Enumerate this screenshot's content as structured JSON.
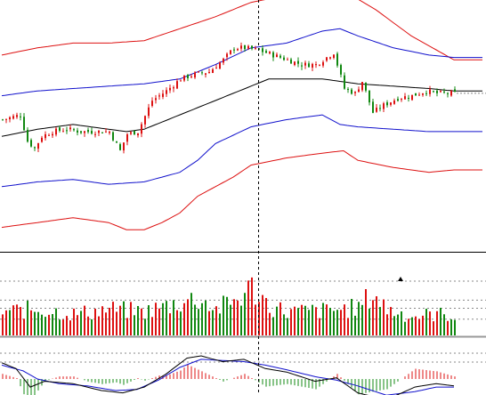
{
  "colors": {
    "background": "#ffffff",
    "bollinger_outer": "#dd1111",
    "bollinger_inner": "#1111cc",
    "moving_average": "#000000",
    "candle_up": "#dd1111",
    "candle_down": "#118811",
    "volume_up": "#dd1111",
    "volume_down": "#118811",
    "macd_dif": "#000000",
    "macd_dea": "#1111cc",
    "macd_hist_pos": "#dd1111",
    "macd_hist_neg": "#118811",
    "crosshair": "#000000",
    "gridline": "#888888",
    "last_price_line": "#888888"
  },
  "chart_data": [
    {
      "type": "candlestick",
      "panel": "price",
      "title": "",
      "x_label": "",
      "y_label": "",
      "bar_count": 128,
      "price_range": [
        0,
        100
      ],
      "grid": false,
      "overlays": [
        "moving-average",
        "bollinger-inner",
        "bollinger-outer"
      ],
      "crosshair_bar_index": 72,
      "last_price_line": true,
      "anchor_points": {
        "close": [
          [
            0,
            50
          ],
          [
            5,
            52
          ],
          [
            7,
            41
          ],
          [
            9,
            38
          ],
          [
            11,
            43
          ],
          [
            14,
            45
          ],
          [
            18,
            46
          ],
          [
            22,
            45
          ],
          [
            26,
            45
          ],
          [
            30,
            45
          ],
          [
            33,
            37
          ],
          [
            35,
            44
          ],
          [
            38,
            45
          ],
          [
            42,
            58
          ],
          [
            46,
            62
          ],
          [
            50,
            67
          ],
          [
            54,
            69
          ],
          [
            58,
            70
          ],
          [
            62,
            75
          ],
          [
            65,
            80
          ],
          [
            68,
            80
          ],
          [
            72,
            79
          ],
          [
            76,
            77
          ],
          [
            80,
            75
          ],
          [
            84,
            73
          ],
          [
            88,
            73
          ],
          [
            93,
            78
          ],
          [
            96,
            63
          ],
          [
            99,
            61
          ],
          [
            101,
            66
          ],
          [
            104,
            53
          ],
          [
            107,
            56
          ],
          [
            111,
            59
          ],
          [
            115,
            60
          ],
          [
            119,
            62
          ],
          [
            122,
            61
          ]
        ],
        "moving_average": [
          [
            0,
            43
          ],
          [
            10,
            46
          ],
          [
            20,
            48
          ],
          [
            30,
            46
          ],
          [
            35,
            45
          ],
          [
            40,
            46
          ],
          [
            50,
            52
          ],
          [
            60,
            58
          ],
          [
            70,
            64
          ],
          [
            75,
            67
          ],
          [
            80,
            67
          ],
          [
            90,
            67
          ],
          [
            100,
            65
          ],
          [
            110,
            64
          ],
          [
            120,
            63
          ],
          [
            127,
            62
          ]
        ],
        "bollinger_inner_upper": [
          [
            0,
            60
          ],
          [
            10,
            62
          ],
          [
            20,
            63
          ],
          [
            30,
            64
          ],
          [
            40,
            65
          ],
          [
            50,
            67
          ],
          [
            60,
            73
          ],
          [
            70,
            80
          ],
          [
            80,
            82
          ],
          [
            90,
            87
          ],
          [
            95,
            88
          ],
          [
            100,
            85
          ],
          [
            110,
            80
          ],
          [
            120,
            77
          ],
          [
            127,
            76
          ]
        ],
        "bollinger_inner_lower": [
          [
            0,
            22
          ],
          [
            10,
            24
          ],
          [
            20,
            25
          ],
          [
            30,
            23
          ],
          [
            40,
            24
          ],
          [
            45,
            26
          ],
          [
            50,
            28
          ],
          [
            55,
            33
          ],
          [
            60,
            40
          ],
          [
            70,
            47
          ],
          [
            80,
            50
          ],
          [
            90,
            52
          ],
          [
            95,
            48
          ],
          [
            100,
            47
          ],
          [
            110,
            46
          ],
          [
            120,
            45
          ],
          [
            127,
            45
          ]
        ],
        "bollinger_outer_upper": [
          [
            0,
            77
          ],
          [
            10,
            80
          ],
          [
            20,
            82
          ],
          [
            30,
            82
          ],
          [
            40,
            83
          ],
          [
            50,
            88
          ],
          [
            60,
            93
          ],
          [
            70,
            99
          ],
          [
            80,
            102
          ],
          [
            90,
            104
          ],
          [
            97,
            103
          ],
          [
            105,
            96
          ],
          [
            115,
            85
          ],
          [
            127,
            75
          ]
        ],
        "bollinger_outer_lower": [
          [
            0,
            5
          ],
          [
            10,
            7
          ],
          [
            20,
            9
          ],
          [
            30,
            7
          ],
          [
            35,
            4
          ],
          [
            40,
            4
          ],
          [
            45,
            7
          ],
          [
            50,
            11
          ],
          [
            55,
            18
          ],
          [
            60,
            22
          ],
          [
            65,
            26
          ],
          [
            70,
            31
          ],
          [
            80,
            34
          ],
          [
            90,
            36
          ],
          [
            96,
            37
          ],
          [
            100,
            33
          ],
          [
            110,
            30
          ],
          [
            120,
            28
          ],
          [
            127,
            29
          ]
        ]
      }
    },
    {
      "type": "bar",
      "panel": "volume",
      "title": "",
      "x_label": "",
      "y_label": "",
      "value_range": [
        0,
        100
      ],
      "reference_levels": [
        30,
        50,
        65,
        100
      ],
      "marker_bar_index": 112,
      "anchor_points": [
        [
          0,
          50
        ],
        [
          10,
          55
        ],
        [
          20,
          45
        ],
        [
          30,
          55
        ],
        [
          40,
          50
        ],
        [
          50,
          70
        ],
        [
          55,
          78
        ],
        [
          60,
          55
        ],
        [
          65,
          72
        ],
        [
          70,
          100
        ],
        [
          75,
          62
        ],
        [
          80,
          50
        ],
        [
          90,
          52
        ],
        [
          100,
          58
        ],
        [
          104,
          88
        ],
        [
          108,
          55
        ],
        [
          115,
          40
        ],
        [
          122,
          45
        ],
        [
          127,
          42
        ]
      ]
    },
    {
      "type": "line",
      "panel": "macd",
      "title": "",
      "x_label": "",
      "y_label": "",
      "value_range": [
        -1,
        1
      ],
      "series_names": [],
      "dif_anchor_points": [
        [
          0,
          0.7
        ],
        [
          4,
          0.45
        ],
        [
          8,
          -0.35
        ],
        [
          12,
          -0.1
        ],
        [
          20,
          -0.2
        ],
        [
          28,
          -0.5
        ],
        [
          34,
          -0.6
        ],
        [
          40,
          -0.35
        ],
        [
          46,
          0.2
        ],
        [
          52,
          0.9
        ],
        [
          56,
          1.0
        ],
        [
          62,
          0.75
        ],
        [
          68,
          0.85
        ],
        [
          74,
          0.45
        ],
        [
          80,
          0.3
        ],
        [
          88,
          -0.1
        ],
        [
          94,
          0.05
        ],
        [
          100,
          -0.6
        ],
        [
          108,
          -0.9
        ],
        [
          116,
          -0.35
        ],
        [
          122,
          -0.2
        ],
        [
          127,
          -0.3
        ]
      ],
      "dea_anchor_points": [
        [
          0,
          0.6
        ],
        [
          6,
          0.35
        ],
        [
          10,
          0.0
        ],
        [
          16,
          -0.2
        ],
        [
          24,
          -0.3
        ],
        [
          32,
          -0.5
        ],
        [
          38,
          -0.45
        ],
        [
          44,
          -0.05
        ],
        [
          50,
          0.5
        ],
        [
          56,
          0.85
        ],
        [
          62,
          0.8
        ],
        [
          68,
          0.75
        ],
        [
          74,
          0.6
        ],
        [
          80,
          0.4
        ],
        [
          88,
          0.1
        ],
        [
          94,
          -0.05
        ],
        [
          100,
          -0.3
        ],
        [
          108,
          -0.7
        ],
        [
          116,
          -0.55
        ],
        [
          122,
          -0.35
        ],
        [
          127,
          -0.35
        ]
      ]
    }
  ]
}
